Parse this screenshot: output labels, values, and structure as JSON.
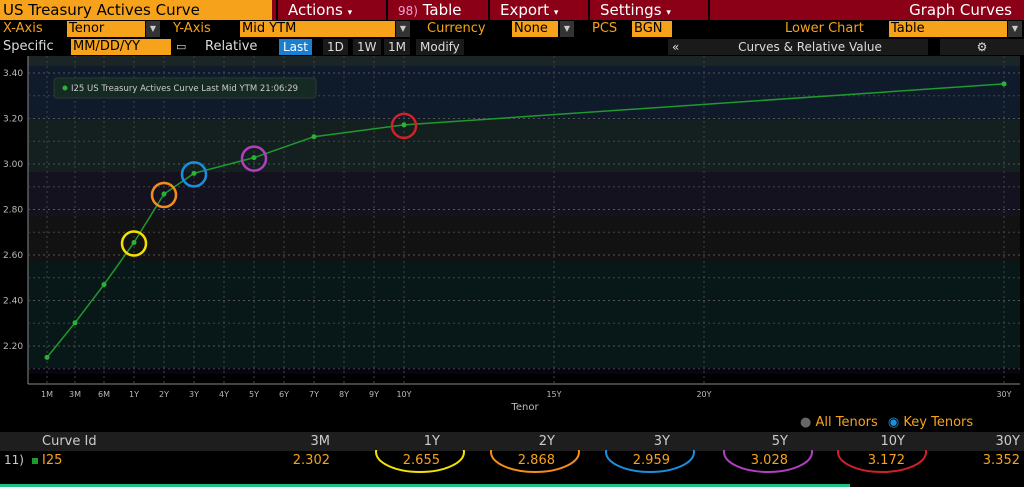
{
  "header": {
    "title": "US Treasury Actives Curve",
    "menus": [
      "Actions",
      "Table",
      "Export",
      "Settings"
    ],
    "table_prefix": "98)",
    "right_title": "Graph Curves"
  },
  "controls": {
    "xaxis_label": "X-Axis",
    "xaxis_value": "Tenor",
    "yaxis_label": "Y-Axis",
    "yaxis_value": "Mid YTM",
    "currency_label": "Currency",
    "currency_value": "None",
    "pcs_label": "PCS",
    "pcs_value": "BGN",
    "lower_label": "Lower Chart",
    "lower_value": "Table",
    "specific_label": "Specific",
    "date_placeholder": "MM/DD/YY",
    "relative_label": "Relative",
    "relative_options": [
      "Last",
      "1D",
      "1W",
      "1M"
    ],
    "relative_selected": "Last",
    "modify": "Modify",
    "collapse": "«",
    "panel_title": "Curves & Relative Value"
  },
  "colors": {
    "orange": "#f7a21b",
    "red_bar": "#8b0016",
    "line": "#1f9a2e",
    "selected": "#1a7fd0"
  },
  "chart_data": {
    "type": "line",
    "xlabel": "Tenor",
    "ylabel": "",
    "ylim": [
      2.1,
      3.45
    ],
    "yticks": [
      "3.40",
      "3.20",
      "3.00",
      "2.80",
      "2.60",
      "2.40",
      "2.20"
    ],
    "xticks": [
      "1M",
      "3M",
      "6M",
      "1Y",
      "2Y",
      "3Y",
      "4Y",
      "5Y",
      "6Y",
      "7Y",
      "8Y",
      "9Y",
      "10Y",
      "15Y",
      "20Y",
      "30Y"
    ],
    "legend": "I25 US Treasury Actives Curve Last Mid YTM 21:06:29",
    "legend_position": "top-left",
    "grid": true,
    "series": [
      {
        "name": "I25",
        "x": [
          "1M",
          "3M",
          "6M",
          "1Y",
          "2Y",
          "3Y",
          "5Y",
          "7Y",
          "10Y",
          "30Y"
        ],
        "values": [
          2.15,
          2.302,
          2.47,
          2.655,
          2.868,
          2.959,
          3.028,
          3.12,
          3.172,
          3.352
        ]
      }
    ],
    "highlights": [
      {
        "tenor": "1Y",
        "color": "#f5e100"
      },
      {
        "tenor": "2Y",
        "color": "#f78c1b"
      },
      {
        "tenor": "3Y",
        "color": "#1a8fe0"
      },
      {
        "tenor": "5Y",
        "color": "#b040c0"
      },
      {
        "tenor": "10Y",
        "color": "#d0202a"
      }
    ]
  },
  "toggle": {
    "all": "All Tenors",
    "key": "Key Tenors"
  },
  "table": {
    "headers": [
      "Curve Id",
      "3M",
      "1Y",
      "2Y",
      "3Y",
      "5Y",
      "10Y",
      "30Y"
    ],
    "rows": [
      {
        "num": "11)",
        "id": "I25",
        "values": [
          "2.302",
          "2.655",
          "2.868",
          "2.959",
          "3.028",
          "3.172",
          "3.352"
        ]
      }
    ]
  }
}
